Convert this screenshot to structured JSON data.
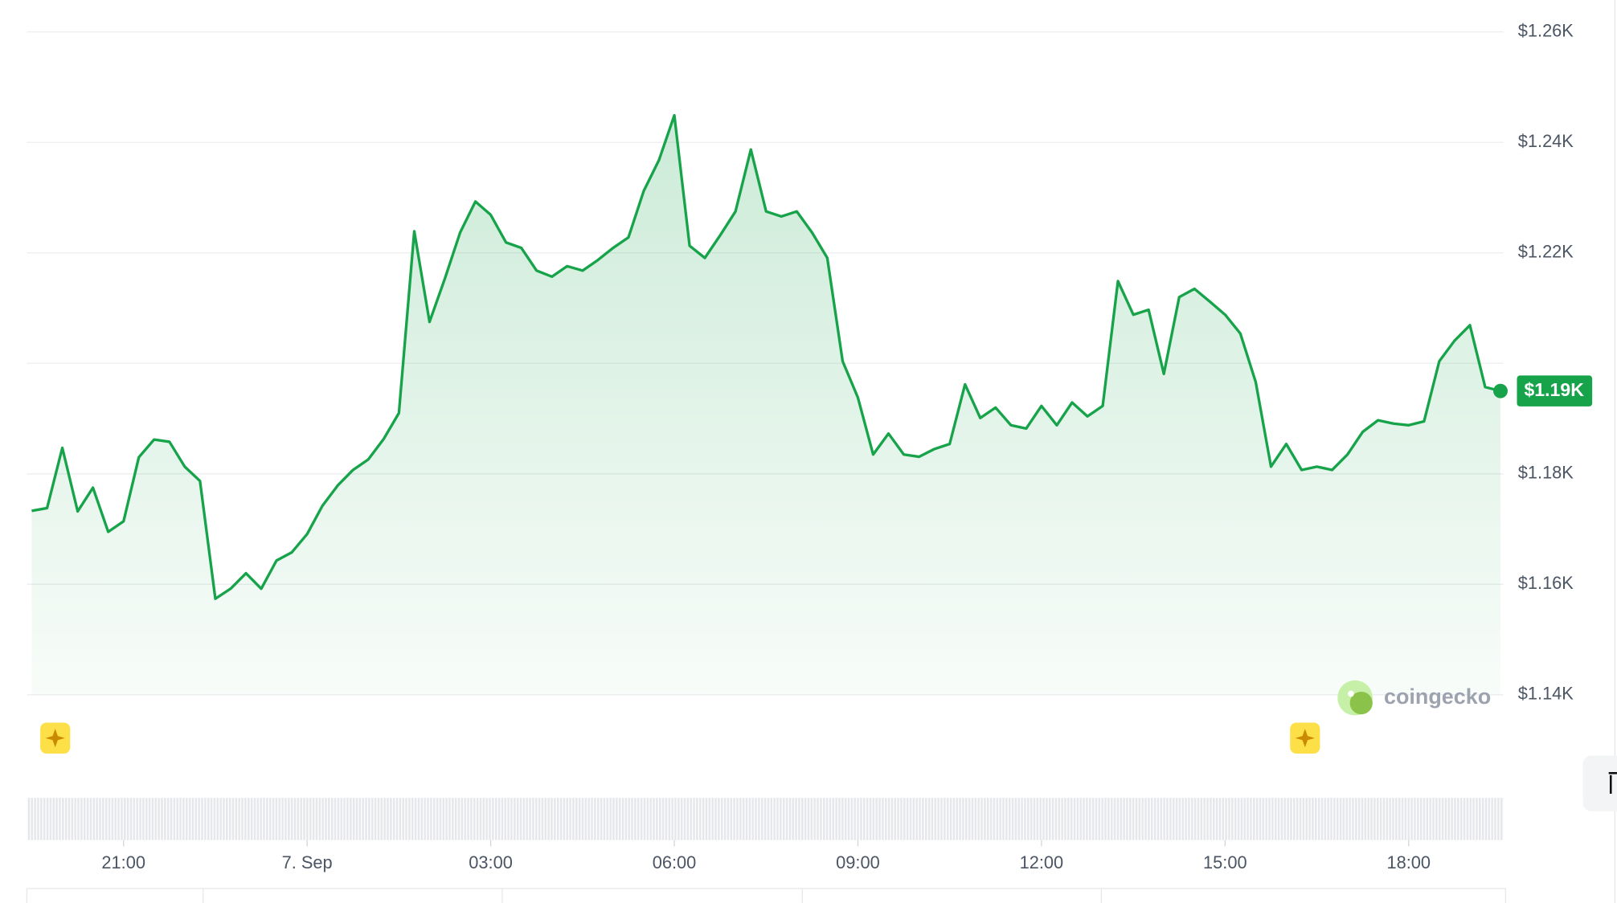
{
  "chart_data": {
    "type": "line",
    "color": "#16a34a",
    "x": [
      -4.5,
      -4.25,
      -4,
      -3.75,
      -3.5,
      -3.25,
      -3,
      -2.75,
      -2.5,
      -2.25,
      -2,
      -1.75,
      -1.5,
      -1.25,
      -1,
      -0.75,
      -0.5,
      -0.25,
      0,
      0.25,
      0.5,
      0.75,
      1,
      1.25,
      1.5,
      1.75,
      2,
      2.25,
      2.5,
      2.75,
      3,
      3.25,
      3.5,
      3.75,
      4,
      4.25,
      4.5,
      4.75,
      5,
      5.25,
      5.5,
      5.75,
      6,
      6.25,
      6.5,
      6.75,
      7,
      7.25,
      7.5,
      7.75,
      8,
      8.25,
      8.5,
      8.75,
      9,
      9.25,
      9.5,
      9.75,
      10,
      10.25,
      10.5,
      10.75,
      11,
      11.25,
      11.5,
      11.75,
      12,
      12.25,
      12.5,
      12.75,
      13,
      13.25,
      13.5,
      13.75,
      14,
      14.25,
      14.5,
      14.75,
      15,
      15.25,
      15.5,
      15.75,
      16,
      16.25,
      16.5,
      16.75,
      17,
      17.25,
      17.5,
      17.75,
      18,
      18.25,
      18.5,
      18.75,
      19,
      19.25,
      19.5
    ],
    "values": [
      1173.3,
      1173.8,
      1184.7,
      1173.2,
      1177.5,
      1169.5,
      1171.4,
      1183,
      1186.2,
      1185.8,
      1181.3,
      1178.7,
      1157.4,
      1159.2,
      1162,
      1159.2,
      1164.3,
      1165.8,
      1169.1,
      1174.2,
      1177.9,
      1180.7,
      1182.6,
      1186.3,
      1191,
      1223.9,
      1207.5,
      1215.3,
      1223.7,
      1229.3,
      1226.9,
      1221.9,
      1220.9,
      1216.8,
      1215.7,
      1217.6,
      1216.8,
      1218.7,
      1220.9,
      1222.8,
      1231.2,
      1236.8,
      1244.9,
      1221.3,
      1219.1,
      1223.2,
      1227.5,
      1238.7,
      1227.5,
      1226.6,
      1227.5,
      1223.7,
      1219.1,
      1200.4,
      1193.8,
      1183.5,
      1187.3,
      1183.5,
      1183.1,
      1184.5,
      1185.4,
      1196.2,
      1190.1,
      1192,
      1188.8,
      1188.2,
      1192.3,
      1188.8,
      1192.9,
      1190.4,
      1192.3,
      1214.9,
      1208.8,
      1209.7,
      1198.1,
      1212,
      1213.5,
      1211.2,
      1208.8,
      1205.4,
      1196.6,
      1181.3,
      1185.4,
      1180.7,
      1181.3,
      1180.7,
      1183.5,
      1187.6,
      1189.7,
      1189.1,
      1188.8,
      1189.5,
      1200.4,
      1204.1,
      1206.9,
      1195.7,
      1195
    ],
    "value_labels": [
      null,
      null,
      null,
      null,
      null,
      null,
      null,
      null,
      null,
      null,
      null,
      null,
      null,
      null,
      null,
      null,
      null,
      null,
      null,
      null,
      null,
      null,
      null,
      null,
      null,
      null,
      null,
      null,
      null,
      null,
      null,
      null,
      null,
      null,
      null,
      null,
      null,
      null,
      null,
      null,
      null,
      null,
      null,
      null,
      null,
      null,
      null,
      null,
      null,
      null,
      null,
      null,
      null,
      null,
      null,
      null,
      null,
      null,
      null,
      null,
      null,
      null,
      null,
      null,
      null,
      null,
      null,
      null,
      null,
      null,
      null,
      null,
      null,
      null,
      null,
      null,
      null,
      null,
      null,
      null,
      null,
      null,
      null,
      null,
      null,
      null,
      null,
      null,
      null,
      null,
      null,
      null,
      null,
      null,
      null,
      null,
      "$1.19K"
    ],
    "xlim": [
      -4.58,
      19.55
    ],
    "xticks": [
      {
        "value": -3,
        "label": "21:00"
      },
      {
        "value": 0,
        "label": "7. Sep"
      },
      {
        "value": 3,
        "label": "03:00"
      },
      {
        "value": 6,
        "label": "06:00"
      },
      {
        "value": 9,
        "label": "09:00"
      },
      {
        "value": 12,
        "label": "12:00"
      },
      {
        "value": 15,
        "label": "15:00"
      },
      {
        "value": 18,
        "label": "18:00"
      }
    ],
    "ylim": [
      1140,
      1260
    ],
    "yticks": [
      {
        "value": 1140,
        "label": "$1.14K"
      },
      {
        "value": 1160,
        "label": "$1.16K"
      },
      {
        "value": 1180,
        "label": "$1.18K"
      },
      {
        "value": 1200,
        "label": null
      },
      {
        "value": 1220,
        "label": "$1.22K"
      },
      {
        "value": 1240,
        "label": "$1.24K"
      },
      {
        "value": 1260,
        "label": "$1.26K"
      }
    ],
    "grid": true,
    "watermark": "coingecko"
  }
}
